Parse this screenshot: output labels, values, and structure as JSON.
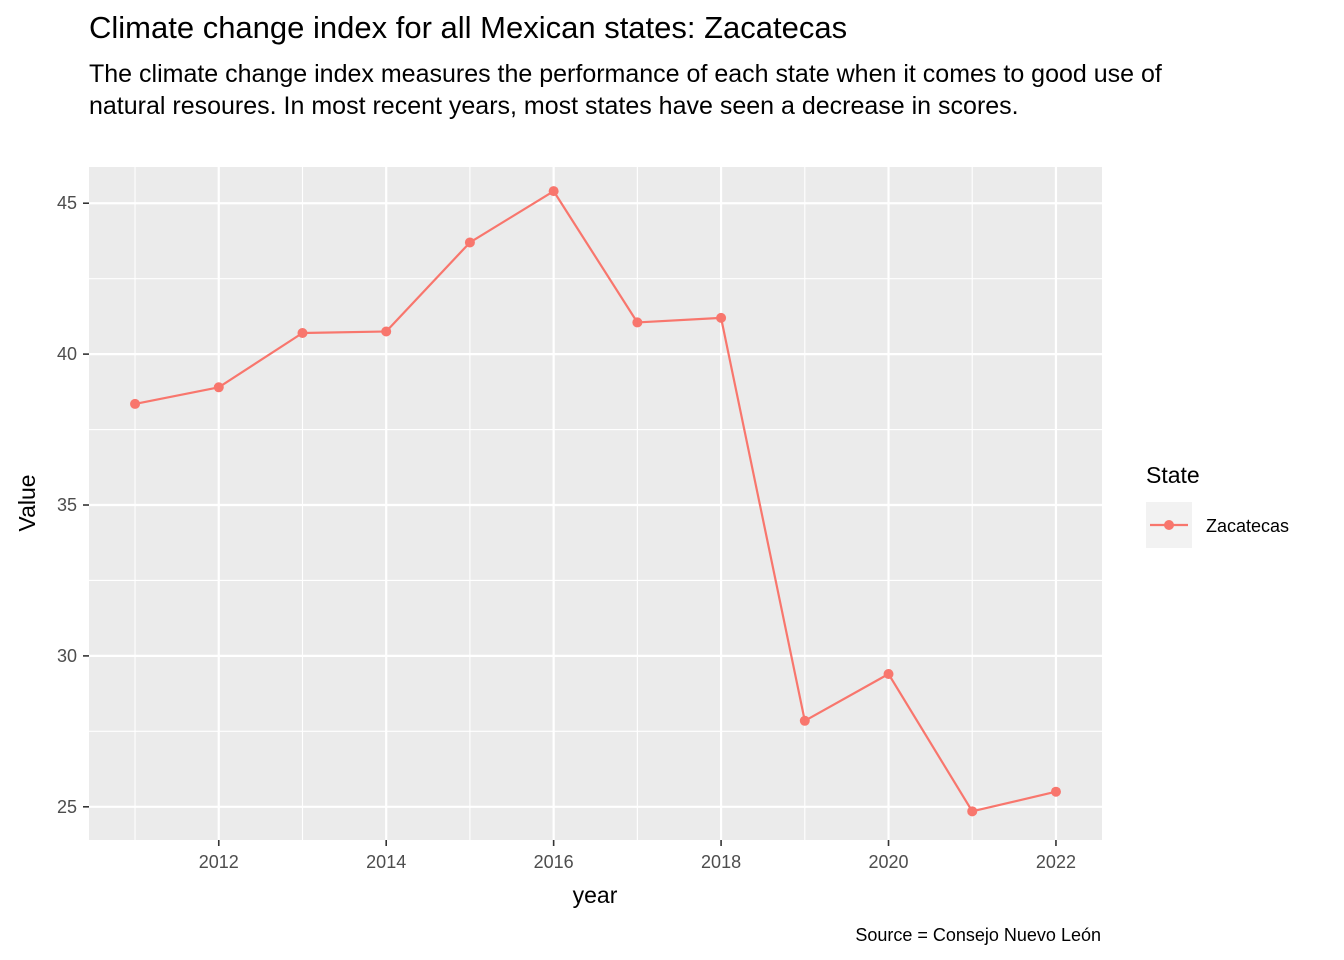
{
  "title": "Climate change index for all Mexican states: Zacatecas",
  "subtitle": "The climate change index measures the performance of each state when it comes to good use of natural resoures. In most recent years, most states have seen a decrease in scores.",
  "caption": "Source = Consejo Nuevo León",
  "legend": {
    "title": "State",
    "entries": [
      "Zacatecas"
    ]
  },
  "colors": {
    "series": "#F8766D",
    "panel": "#EBEBEB",
    "grid": "#FFFFFF"
  },
  "chart_data": {
    "type": "line",
    "title": "Climate change index for all Mexican states: Zacatecas",
    "xlabel": "year",
    "ylabel": "Value",
    "xlim": [
      2010.45,
      2022.55
    ],
    "ylim": [
      23.9,
      46.2
    ],
    "x_ticks": [
      2012,
      2014,
      2016,
      2018,
      2020,
      2022
    ],
    "y_ticks": [
      25,
      30,
      35,
      40,
      45
    ],
    "grid": true,
    "legend_position": "right",
    "series": [
      {
        "name": "Zacatecas",
        "x": [
          2011,
          2012,
          2013,
          2014,
          2015,
          2016,
          2017,
          2018,
          2019,
          2020,
          2021,
          2022
        ],
        "values": [
          38.35,
          38.9,
          40.7,
          40.75,
          43.7,
          45.4,
          41.05,
          41.2,
          27.85,
          29.4,
          24.85,
          25.5
        ]
      }
    ]
  }
}
